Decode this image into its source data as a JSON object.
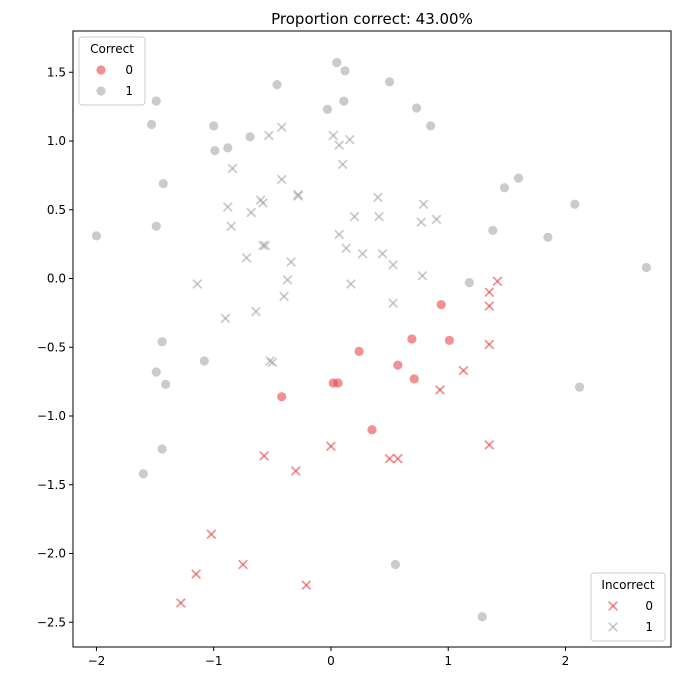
{
  "chart_data": {
    "type": "scatter",
    "title": "Proportion correct: 43.00%",
    "xlabel": "",
    "ylabel": "",
    "xlim": [
      -2.2,
      2.9
    ],
    "ylim": [
      -2.68,
      1.8
    ],
    "xticks": [
      -2,
      -1,
      0,
      1,
      2
    ],
    "xtick_labels": [
      "−2",
      "−1",
      "0",
      "1",
      "2"
    ],
    "yticks": [
      -2.5,
      -2.0,
      -1.5,
      -1.0,
      -0.5,
      0.0,
      0.5,
      1.0,
      1.5
    ],
    "ytick_labels": [
      "−2.5",
      "−2.0",
      "−1.5",
      "−1.0",
      "−0.5",
      "0.0",
      "0.5",
      "1.0",
      "1.5"
    ],
    "grid": false,
    "colors": {
      "class0": "#e8474b",
      "class1": "#a8a8a8"
    },
    "legends": [
      {
        "title": "Correct",
        "placement": "top-left",
        "marker": "circle",
        "entries": [
          {
            "label": "0",
            "color": "#e8474b"
          },
          {
            "label": "1",
            "color": "#a8a8a8"
          }
        ]
      },
      {
        "title": "Incorrect",
        "placement": "bottom-right",
        "marker": "x",
        "entries": [
          {
            "label": "0",
            "color": "#e8474b"
          },
          {
            "label": "1",
            "color": "#a8a8a8"
          }
        ]
      }
    ],
    "series": [
      {
        "name": "Correct 0",
        "marker": "circle",
        "color": "#e8474b",
        "points": [
          [
            0.94,
            -0.19
          ],
          [
            1.01,
            -0.45
          ],
          [
            0.69,
            -0.44
          ],
          [
            0.24,
            -0.53
          ],
          [
            0.57,
            -0.63
          ],
          [
            0.71,
            -0.73
          ],
          [
            0.02,
            -0.76
          ],
          [
            0.06,
            -0.76
          ],
          [
            -0.42,
            -0.86
          ],
          [
            0.35,
            -1.1
          ]
        ]
      },
      {
        "name": "Correct 1",
        "marker": "circle",
        "color": "#a8a8a8",
        "points": [
          [
            0.05,
            1.57
          ],
          [
            0.12,
            1.51
          ],
          [
            0.5,
            1.43
          ],
          [
            -0.46,
            1.41
          ],
          [
            -1.49,
            1.29
          ],
          [
            0.11,
            1.29
          ],
          [
            -0.03,
            1.23
          ],
          [
            0.73,
            1.24
          ],
          [
            -1.53,
            1.12
          ],
          [
            -1.0,
            1.11
          ],
          [
            0.85,
            1.11
          ],
          [
            -0.69,
            1.03
          ],
          [
            -0.88,
            0.95
          ],
          [
            -0.99,
            0.93
          ],
          [
            1.6,
            0.73
          ],
          [
            -1.43,
            0.69
          ],
          [
            1.48,
            0.66
          ],
          [
            2.08,
            0.54
          ],
          [
            -1.49,
            0.38
          ],
          [
            1.38,
            0.35
          ],
          [
            -2.0,
            0.31
          ],
          [
            1.85,
            0.3
          ],
          [
            2.69,
            0.08
          ],
          [
            1.18,
            -0.03
          ],
          [
            -1.44,
            -0.46
          ],
          [
            -1.08,
            -0.6
          ],
          [
            -1.49,
            -0.68
          ],
          [
            -1.41,
            -0.77
          ],
          [
            2.12,
            -0.79
          ],
          [
            -1.44,
            -1.24
          ],
          [
            -1.6,
            -1.42
          ],
          [
            0.55,
            -2.08
          ],
          [
            1.29,
            -2.46
          ]
        ]
      },
      {
        "name": "Incorrect 0",
        "marker": "x",
        "color": "#e8474b",
        "points": [
          [
            1.42,
            -0.02
          ],
          [
            1.35,
            -0.1
          ],
          [
            1.35,
            -0.2
          ],
          [
            1.35,
            -0.48
          ],
          [
            1.13,
            -0.67
          ],
          [
            0.93,
            -0.81
          ],
          [
            1.35,
            -1.21
          ],
          [
            -0.57,
            -1.29
          ],
          [
            -0.3,
            -1.4
          ],
          [
            0.0,
            -1.22
          ],
          [
            0.5,
            -1.31
          ],
          [
            0.57,
            -1.31
          ],
          [
            -1.02,
            -1.86
          ],
          [
            -0.75,
            -2.08
          ],
          [
            -1.15,
            -2.15
          ],
          [
            -0.21,
            -2.23
          ],
          [
            -1.28,
            -2.36
          ]
        ]
      },
      {
        "name": "Incorrect 1",
        "marker": "x",
        "color": "#a8a8a8",
        "points": [
          [
            -0.53,
            1.04
          ],
          [
            -0.42,
            1.1
          ],
          [
            0.02,
            1.04
          ],
          [
            0.07,
            0.97
          ],
          [
            0.16,
            1.01
          ],
          [
            0.1,
            0.83
          ],
          [
            -0.84,
            0.8
          ],
          [
            -0.42,
            0.72
          ],
          [
            -0.28,
            0.61
          ],
          [
            -0.28,
            0.6
          ],
          [
            -0.6,
            0.57
          ],
          [
            -0.58,
            0.55
          ],
          [
            -0.88,
            0.52
          ],
          [
            -0.68,
            0.48
          ],
          [
            0.4,
            0.59
          ],
          [
            0.79,
            0.54
          ],
          [
            0.2,
            0.45
          ],
          [
            0.41,
            0.45
          ],
          [
            0.9,
            0.43
          ],
          [
            0.77,
            0.41
          ],
          [
            -0.85,
            0.38
          ],
          [
            0.07,
            0.32
          ],
          [
            -0.56,
            0.24
          ],
          [
            -0.58,
            0.24
          ],
          [
            0.13,
            0.22
          ],
          [
            0.27,
            0.18
          ],
          [
            0.44,
            0.18
          ],
          [
            -0.72,
            0.15
          ],
          [
            -0.34,
            0.12
          ],
          [
            0.53,
            0.1
          ],
          [
            0.78,
            0.02
          ],
          [
            -0.37,
            -0.01
          ],
          [
            0.17,
            -0.04
          ],
          [
            -1.14,
            -0.04
          ],
          [
            -0.4,
            -0.13
          ],
          [
            0.53,
            -0.18
          ],
          [
            -0.64,
            -0.24
          ],
          [
            -0.9,
            -0.29
          ],
          [
            -0.52,
            -0.6
          ],
          [
            -0.5,
            -0.61
          ]
        ]
      }
    ]
  }
}
